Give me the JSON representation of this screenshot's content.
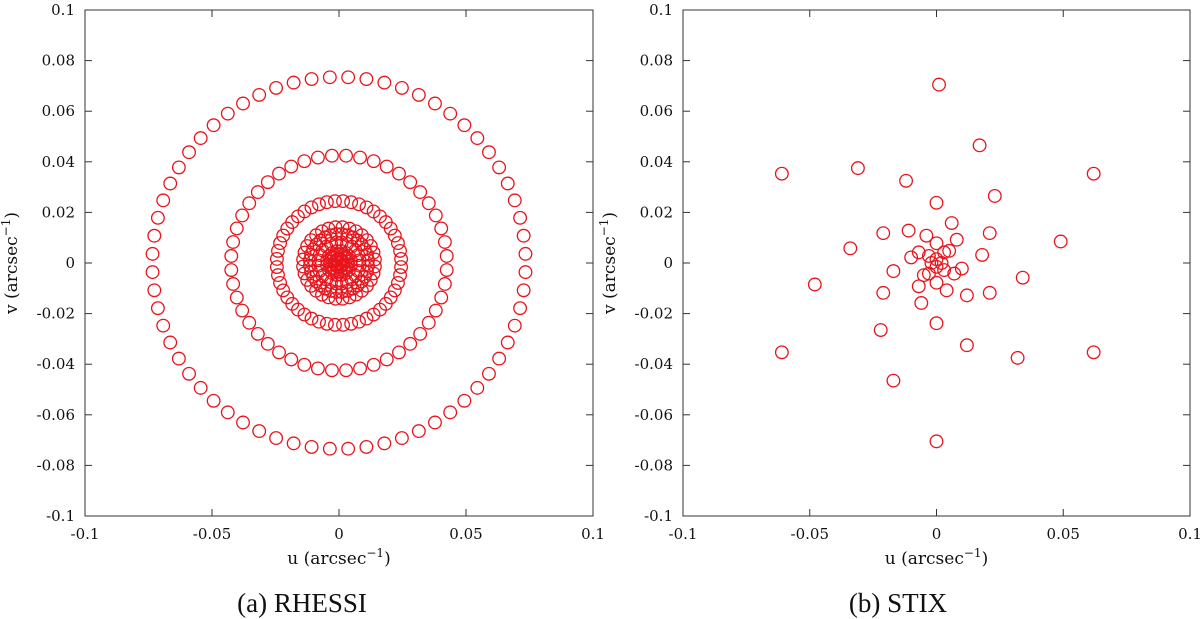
{
  "chart_data": [
    {
      "type": "scatter",
      "caption": "(a) RHESSI",
      "xlabel": "u (arcsec",
      "ylabel": "v (arcsec",
      "unit_exponent": "−1",
      "xlim": [
        -0.1,
        0.1
      ],
      "ylim": [
        -0.1,
        0.1
      ],
      "xticks": [
        -0.1,
        -0.05,
        0,
        0.05,
        0.1
      ],
      "xtick_labels": [
        "-0.1",
        "-0.05",
        "0",
        "0.05",
        "0.1"
      ],
      "yticks": [
        -0.1,
        -0.08,
        -0.06,
        -0.04,
        -0.02,
        0,
        0.02,
        0.04,
        0.06,
        0.08,
        0.1
      ],
      "ytick_labels": [
        "-0.1",
        "-0.08",
        "-0.06",
        "-0.04",
        "-0.02",
        "0",
        "0.02",
        "0.04",
        "0.06",
        "0.08",
        "0.1"
      ],
      "grid": false,
      "marker": "open-circle",
      "color": "#e8141c",
      "rings": [
        {
          "radius": 0.0735,
          "points": 64
        },
        {
          "radius": 0.0425,
          "points": 48
        },
        {
          "radius": 0.0245,
          "points": 48
        },
        {
          "radius": 0.0142,
          "points": 32
        },
        {
          "radius": 0.0115,
          "points": 32
        },
        {
          "radius": 0.0082,
          "points": 24
        },
        {
          "radius": 0.0048,
          "points": 16
        },
        {
          "radius": 0.0028,
          "points": 12
        },
        {
          "radius": 0.0016,
          "points": 8
        }
      ]
    },
    {
      "type": "scatter",
      "caption": "(b) STIX",
      "xlabel": "u (arcsec",
      "ylabel": "v (arcsec",
      "unit_exponent": "−1",
      "xlim": [
        -0.1,
        0.1
      ],
      "ylim": [
        -0.1,
        0.1
      ],
      "xticks": [
        -0.1,
        -0.05,
        0,
        0.05,
        0.1
      ],
      "xtick_labels": [
        "-0.1",
        "-0.05",
        "0",
        "0.05",
        "0.1"
      ],
      "yticks": [
        -0.1,
        -0.08,
        -0.06,
        -0.04,
        -0.02,
        0,
        0.02,
        0.04,
        0.06,
        0.08,
        0.1
      ],
      "ytick_labels": [
        "-0.1",
        "-0.08",
        "-0.06",
        "-0.04",
        "-0.02",
        "0",
        "0.02",
        "0.04",
        "0.06",
        "0.08",
        "0.1"
      ],
      "grid": false,
      "marker": "open-circle",
      "color": "#e8141c",
      "points": [
        [
          0.001,
          0.0705
        ],
        [
          0.0,
          -0.0705
        ],
        [
          0.017,
          0.0465
        ],
        [
          -0.017,
          -0.0465
        ],
        [
          -0.061,
          0.0353
        ],
        [
          0.062,
          0.0353
        ],
        [
          -0.061,
          -0.0353
        ],
        [
          0.062,
          -0.0353
        ],
        [
          -0.031,
          0.0375
        ],
        [
          0.032,
          -0.0375
        ],
        [
          -0.048,
          -0.0085
        ],
        [
          0.049,
          0.0085
        ],
        [
          -0.012,
          0.0325
        ],
        [
          0.012,
          -0.0325
        ],
        [
          0.0,
          0.0238
        ],
        [
          0.0,
          -0.0238
        ],
        [
          0.023,
          0.0265
        ],
        [
          -0.022,
          -0.0265
        ],
        [
          -0.034,
          0.0058
        ],
        [
          0.034,
          -0.0058
        ],
        [
          -0.021,
          0.0118
        ],
        [
          0.021,
          0.0118
        ],
        [
          -0.021,
          -0.0118
        ],
        [
          0.021,
          -0.0118
        ],
        [
          -0.011,
          0.0128
        ],
        [
          0.012,
          -0.0128
        ],
        [
          0.006,
          0.0158
        ],
        [
          -0.006,
          -0.0158
        ],
        [
          0.018,
          0.0032
        ],
        [
          -0.017,
          -0.0032
        ],
        [
          -0.01,
          0.0022
        ],
        [
          0.01,
          -0.0022
        ],
        [
          0.008,
          0.0092
        ],
        [
          -0.007,
          -0.0092
        ],
        [
          -0.004,
          0.0108
        ],
        [
          0.004,
          -0.0108
        ],
        [
          -0.007,
          0.0042
        ],
        [
          0.007,
          -0.0042
        ],
        [
          -0.005,
          -0.0048
        ],
        [
          0.005,
          0.0048
        ],
        [
          0.0,
          0.0078
        ],
        [
          0.0,
          -0.0078
        ],
        [
          0.003,
          0.0042
        ],
        [
          -0.003,
          -0.0042
        ],
        [
          -0.003,
          0.0028
        ],
        [
          0.003,
          -0.0028
        ],
        [
          -0.002,
          0.0
        ],
        [
          0.002,
          0.0
        ],
        [
          0.0,
          0.0015
        ],
        [
          0.0,
          -0.0015
        ]
      ]
    }
  ]
}
